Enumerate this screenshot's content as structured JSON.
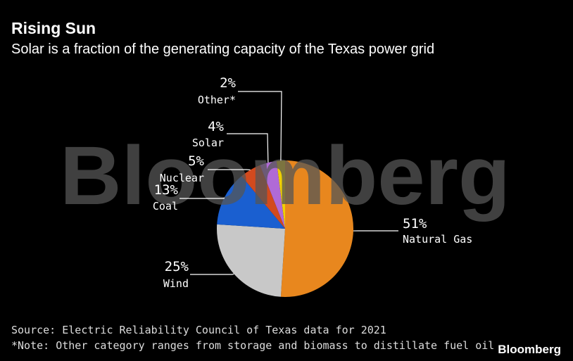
{
  "chart_data": {
    "type": "pie",
    "title": "Rising Sun",
    "subtitle": "Solar is a fraction of the generating capacity of the Texas power grid",
    "categories": [
      "Natural Gas",
      "Wind",
      "Coal",
      "Nuclear",
      "Solar",
      "Other*"
    ],
    "values": [
      51,
      25,
      13,
      5,
      4,
      2
    ],
    "value_labels": [
      "51%",
      "25%",
      "13%",
      "5%",
      "4%",
      "2%"
    ],
    "colors": [
      "#e8871e",
      "#c8c8c8",
      "#1a5fd0",
      "#d24a1e",
      "#b06ad6",
      "#f0d000"
    ],
    "watermark": "Bloomberg",
    "source": "Source: Electric Reliability Council of Texas data for 2021",
    "note": "*Note: Other category ranges from storage and biomass to distillate fuel oil",
    "brand": "Bloomberg"
  }
}
